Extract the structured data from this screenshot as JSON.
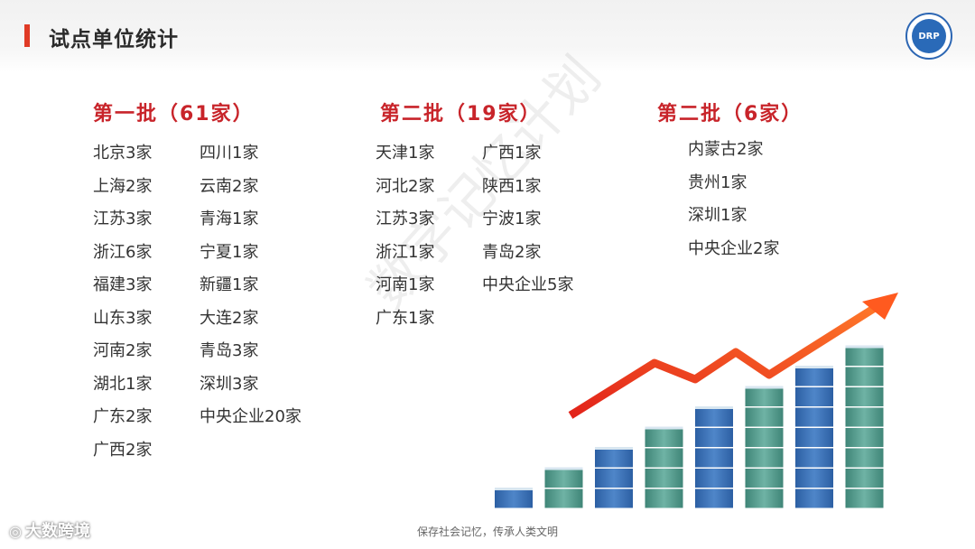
{
  "header": {
    "title": "试点单位统计",
    "logo_text": "DRP",
    "logo_icon": "drp-logo"
  },
  "batches": [
    {
      "title": "第一批（61家）",
      "columns": [
        [
          "北京3家",
          "上海2家",
          "江苏3家",
          "浙江6家",
          "福建3家",
          "山东3家",
          "河南2家",
          "湖北1家",
          "广东2家",
          "广西2家"
        ],
        [
          "四川1家",
          "云南2家",
          "青海1家",
          "宁夏1家",
          "新疆1家",
          "大连2家",
          "青岛3家",
          "深圳3家",
          "中央企业20家"
        ]
      ]
    },
    {
      "title": "第二批（19家）",
      "columns": [
        [
          "天津1家",
          "河北2家",
          "江苏3家",
          "浙江1家",
          "河南1家",
          "广东1家"
        ],
        [
          "广西1家",
          "陕西1家",
          "宁波1家",
          "青岛2家",
          "中央企业5家"
        ]
      ]
    },
    {
      "title": "第二批（6家）",
      "columns": [
        [
          "内蒙古2家",
          "贵州1家",
          "深圳1家",
          "中央企业2家"
        ]
      ]
    }
  ],
  "watermark": "数字记忆计划",
  "chart": {
    "bar_counts": [
      1,
      2,
      3,
      4,
      5,
      6,
      7,
      8
    ],
    "colors": {
      "blue": "#3a6fb3",
      "teal": "#4f9a8c",
      "arrow": "#ff5a1f"
    }
  },
  "footer": {
    "text": "保存社会记忆，传承人类文明",
    "brand": "大数跨境",
    "brand_icon": "brand-logo"
  }
}
